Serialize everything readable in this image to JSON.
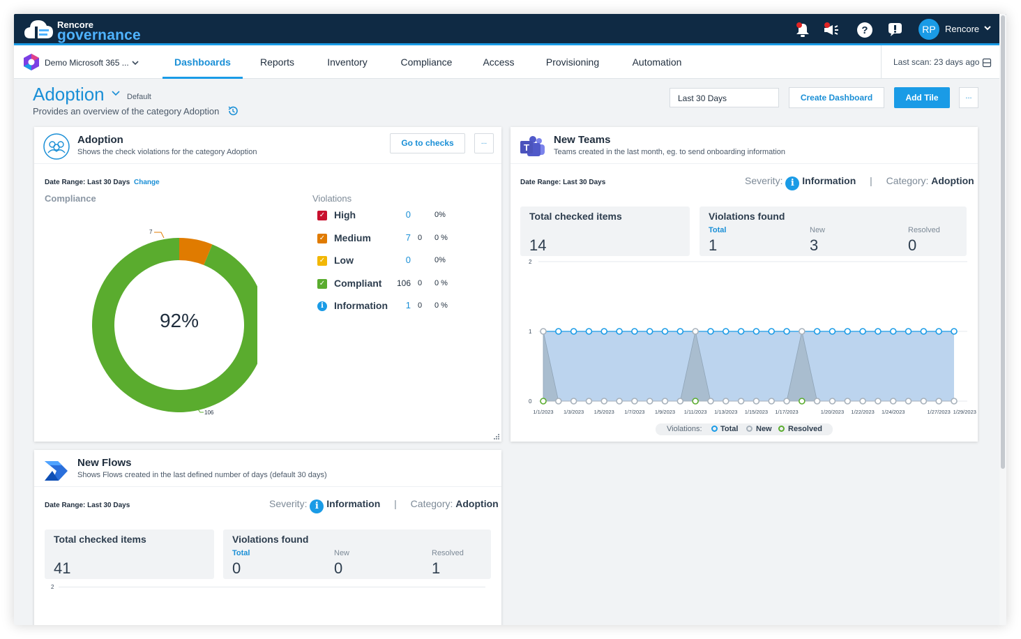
{
  "app": {
    "brand_top": "Rencore",
    "brand_main": "governance",
    "user_initials": "RP",
    "user_name": "Rencore"
  },
  "icons": {
    "notification": "bell-icon",
    "announcement": "megaphone-icon",
    "help": "question-icon",
    "feedback": "chat-icon",
    "history": "history-icon",
    "teams": "teams-icon",
    "flows": "power-automate-icon",
    "adoption": "people-icon"
  },
  "nav": {
    "tenant": "Demo Microsoft 365 ...",
    "tabs": [
      "Dashboards",
      "Reports",
      "Inventory",
      "Compliance",
      "Access",
      "Provisioning",
      "Automation"
    ],
    "active_tab": "Dashboards",
    "last_scan": "Last scan: 23 days ago"
  },
  "page": {
    "title": "Adoption",
    "default_label": "Default",
    "subtitle": "Provides an overview of the category Adoption",
    "date_range": "Last 30 Days",
    "create_dashboard": "Create Dashboard",
    "add_tile": "Add Tile",
    "more": "..."
  },
  "colors": {
    "accent": "#1a9be6",
    "high": "#c8102e",
    "medium": "#e07b00",
    "low": "#f2b705",
    "compliant": "#5aac2e",
    "information": "#1a9be6"
  },
  "adoption_tile": {
    "title": "Adoption",
    "subtitle": "Shows the check violations for the category Adoption",
    "go_to_checks": "Go to checks",
    "more": "...",
    "date_range_label": "Date Range: Last 30 Days",
    "change": "Change",
    "compliance_label": "Compliance",
    "violations_label": "Violations",
    "donut_center": "92%",
    "donut_label_small": "7",
    "donut_label_large": "106",
    "violations": [
      {
        "label": "High",
        "count": "0",
        "new": "",
        "pct": "0%"
      },
      {
        "label": "Medium",
        "count": "7",
        "new": "0",
        "pct": "0 %"
      },
      {
        "label": "Low",
        "count": "0",
        "new": "",
        "pct": "0%"
      },
      {
        "label": "Compliant",
        "count": "106",
        "new": "0",
        "pct": "0 %"
      },
      {
        "label": "Information",
        "count": "1",
        "new": "0",
        "pct": "0 %"
      }
    ]
  },
  "teams_tile": {
    "title": "New Teams",
    "subtitle": "Teams created in the last month, eg. to send onboarding information",
    "date_range_label": "Date Range: Last 30 Days",
    "severity_label": "Severity:",
    "severity_value": "Information",
    "category_label": "Category:",
    "category_value": "Adoption",
    "total_checked_label": "Total checked items",
    "total_checked_value": "14",
    "violations_found_label": "Violations found",
    "total_label": "Total",
    "total_value": "1",
    "new_label": "New",
    "new_value": "3",
    "resolved_label": "Resolved",
    "resolved_value": "0",
    "legend_prefix": "Violations:",
    "legend_total": "Total",
    "legend_new": "New",
    "legend_resolved": "Resolved"
  },
  "flows_tile": {
    "title": "New Flows",
    "subtitle": "Shows Flows created in the last defined number of days (default 30 days)",
    "date_range_label": "Date Range: Last 30 Days",
    "severity_label": "Severity:",
    "severity_value": "Information",
    "category_label": "Category:",
    "category_value": "Adoption",
    "total_checked_label": "Total checked items",
    "total_checked_value": "41",
    "violations_found_label": "Violations found",
    "total_label": "Total",
    "total_value": "0",
    "new_label": "New",
    "new_value": "0",
    "resolved_label": "Resolved",
    "resolved_value": "1",
    "y_top_tick": "2"
  },
  "chart_data": [
    {
      "type": "pie",
      "title": "Compliance",
      "categories": [
        "Medium",
        "Compliant"
      ],
      "values": [
        7,
        106
      ],
      "center_label": "92%"
    },
    {
      "type": "area",
      "title": "New Teams violations",
      "x": [
        "1/1/2023",
        "1/2/2023",
        "1/3/2023",
        "1/4/2023",
        "1/5/2023",
        "1/6/2023",
        "1/7/2023",
        "1/8/2023",
        "1/9/2023",
        "1/10/2023",
        "1/11/2023",
        "1/12/2023",
        "1/13/2023",
        "1/14/2023",
        "1/15/2023",
        "1/16/2023",
        "1/17/2023",
        "1/18/2023",
        "1/19/2023",
        "1/20/2023",
        "1/21/2023",
        "1/22/2023",
        "1/23/2023",
        "1/24/2023",
        "1/25/2023",
        "1/26/2023",
        "1/27/2023",
        "1/28/2023"
      ],
      "x_tick_labels": [
        "1/1/2023",
        "1/3/2023",
        "1/5/2023",
        "1/7/2023",
        "1/9/2023",
        "1/11/2023",
        "1/13/2023",
        "1/15/2023",
        "1/17/2023",
        "1/20/2023",
        "1/22/2023",
        "1/24/2023",
        "1/27/2023",
        "1/29/2023"
      ],
      "series": [
        {
          "name": "Total",
          "values": [
            1,
            1,
            1,
            1,
            1,
            1,
            1,
            1,
            1,
            1,
            1,
            1,
            1,
            1,
            1,
            1,
            1,
            1,
            1,
            1,
            1,
            1,
            1,
            1,
            1,
            1,
            1,
            1
          ]
        },
        {
          "name": "New",
          "values": [
            1,
            0,
            0,
            0,
            0,
            0,
            0,
            0,
            0,
            0,
            1,
            0,
            0,
            0,
            0,
            0,
            0,
            1,
            0,
            0,
            0,
            0,
            0,
            0,
            0,
            0,
            0,
            0
          ]
        },
        {
          "name": "Resolved",
          "values": [
            0,
            0,
            0,
            0,
            0,
            0,
            0,
            0,
            0,
            0,
            0,
            0,
            0,
            0,
            0,
            0,
            0,
            0,
            0,
            0,
            0,
            0,
            0,
            0,
            0,
            0,
            0,
            0
          ]
        }
      ],
      "resolved_markers_at": [
        "1/1/2023",
        "1/11/2023",
        "1/18/2023"
      ],
      "ylim": [
        0,
        2
      ],
      "y_ticks": [
        "0",
        "1",
        "2"
      ],
      "legend": "bottom"
    }
  ]
}
